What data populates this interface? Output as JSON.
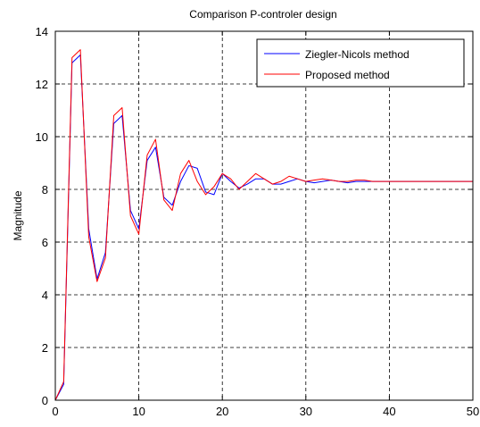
{
  "chart_data": {
    "type": "line",
    "title": "Comparison P-controler design",
    "xlabel": "",
    "ylabel": "Magnitude",
    "xlim": [
      0,
      50
    ],
    "ylim": [
      0,
      14
    ],
    "xticks": [
      0,
      10,
      20,
      30,
      40,
      50
    ],
    "yticks": [
      0,
      2,
      4,
      6,
      8,
      10,
      12,
      14
    ],
    "grid": true,
    "legend_position": "top-right",
    "series": [
      {
        "name": "Ziegler-Nicols method",
        "color": "#0000ff",
        "x": [
          0,
          1,
          2,
          3,
          4,
          5,
          6,
          7,
          8,
          9,
          10,
          11,
          12,
          13,
          14,
          15,
          16,
          17,
          18,
          19,
          20,
          21,
          22,
          23,
          24,
          25,
          26,
          27,
          28,
          29,
          30,
          31,
          32,
          33,
          34,
          35,
          36,
          37,
          38,
          39,
          40,
          41,
          42,
          43,
          44,
          45,
          46,
          47,
          48,
          49,
          50
        ],
        "y": [
          0,
          0.6,
          12.8,
          13.1,
          6.5,
          4.6,
          5.6,
          10.5,
          10.8,
          7.2,
          6.5,
          9.1,
          9.6,
          7.7,
          7.4,
          8.3,
          8.9,
          8.8,
          7.9,
          7.8,
          8.6,
          8.3,
          8.05,
          8.2,
          8.4,
          8.4,
          8.2,
          8.2,
          8.3,
          8.4,
          8.3,
          8.25,
          8.3,
          8.35,
          8.3,
          8.25,
          8.3,
          8.3,
          8.3,
          8.3,
          8.3,
          8.3,
          8.3,
          8.3,
          8.3,
          8.3,
          8.3,
          8.3,
          8.3,
          8.3,
          8.3
        ]
      },
      {
        "name": "Proposed method",
        "color": "#ff0000",
        "x": [
          0,
          1,
          2,
          3,
          4,
          5,
          6,
          7,
          8,
          9,
          10,
          11,
          12,
          13,
          14,
          15,
          16,
          17,
          18,
          19,
          20,
          21,
          22,
          23,
          24,
          25,
          26,
          27,
          28,
          29,
          30,
          31,
          32,
          33,
          34,
          35,
          36,
          37,
          38,
          39,
          40,
          41,
          42,
          43,
          44,
          45,
          46,
          47,
          48,
          49,
          50
        ],
        "y": [
          0,
          0.7,
          13.0,
          13.3,
          6.2,
          4.5,
          5.4,
          10.8,
          11.1,
          7.0,
          6.3,
          9.3,
          9.9,
          7.6,
          7.2,
          8.6,
          9.1,
          8.3,
          7.8,
          8.1,
          8.6,
          8.4,
          8.0,
          8.3,
          8.6,
          8.4,
          8.2,
          8.3,
          8.5,
          8.4,
          8.3,
          8.35,
          8.4,
          8.35,
          8.3,
          8.3,
          8.35,
          8.35,
          8.3,
          8.3,
          8.3,
          8.3,
          8.3,
          8.3,
          8.3,
          8.3,
          8.3,
          8.3,
          8.3,
          8.3,
          8.3
        ]
      }
    ]
  }
}
